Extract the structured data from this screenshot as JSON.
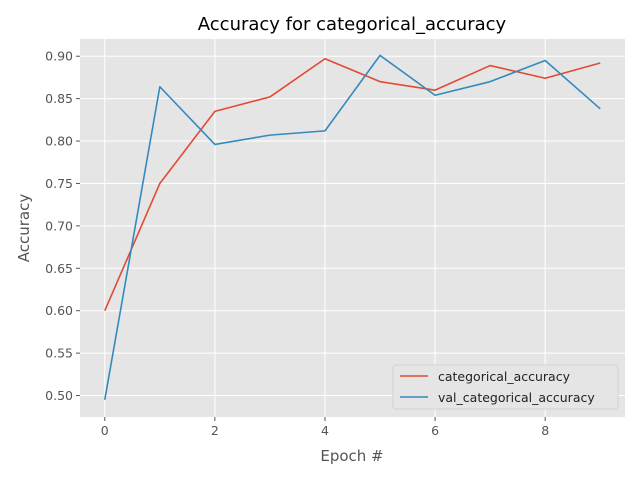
{
  "chart_data": {
    "type": "line",
    "title": "Accuracy for categorical_accuracy",
    "xlabel": "Epoch #",
    "ylabel": "Accuracy",
    "x": [
      0,
      1,
      2,
      3,
      4,
      5,
      6,
      7,
      8,
      9
    ],
    "xlim": [
      -0.45,
      9.45
    ],
    "ylim": [
      0.4747,
      0.9203
    ],
    "xticks": [
      0,
      2,
      4,
      6,
      8
    ],
    "yticks": [
      0.5,
      0.55,
      0.6,
      0.65,
      0.7,
      0.75,
      0.8,
      0.85,
      0.9
    ],
    "xtick_labels": [
      "0",
      "2",
      "4",
      "6",
      "8"
    ],
    "ytick_labels": [
      "0.50",
      "0.55",
      "0.60",
      "0.65",
      "0.70",
      "0.75",
      "0.80",
      "0.85",
      "0.90"
    ],
    "grid": true,
    "legend_position": "lower-right",
    "series": [
      {
        "name": "categorical_accuracy",
        "color": "#E24A33",
        "values": [
          0.6,
          0.75,
          0.835,
          0.852,
          0.897,
          0.87,
          0.86,
          0.889,
          0.874,
          0.892
        ]
      },
      {
        "name": "val_categorical_accuracy",
        "color": "#348ABD",
        "values": [
          0.495,
          0.864,
          0.796,
          0.807,
          0.812,
          0.901,
          0.854,
          0.87,
          0.895,
          0.838
        ]
      }
    ]
  }
}
